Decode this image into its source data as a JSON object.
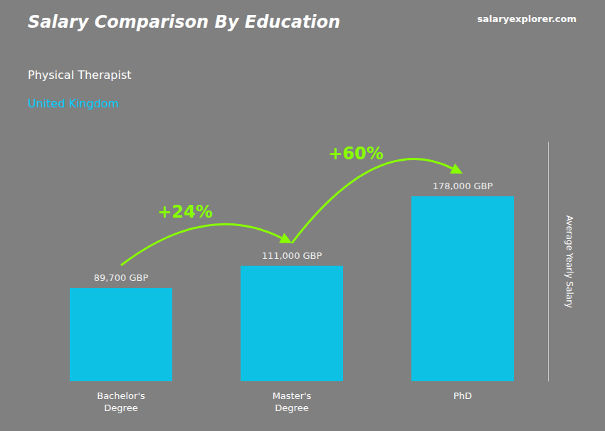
{
  "chart_data": {
    "type": "bar",
    "title": "Salary Comparison By Education",
    "subtitle": [
      "Physical Therapist",
      "United Kingdom"
    ],
    "ylabel": "Average Yearly Salary",
    "categories": [
      "Bachelor's\nDegree",
      "Master's\nDegree",
      "PhD"
    ],
    "values": [
      89700,
      111000,
      178000
    ],
    "value_labels": [
      "89,700 GBP",
      "111,000 GBP",
      "178,000 GBP"
    ],
    "data_labels": true,
    "color": "#00c8f0",
    "ylim": [
      0,
      230000
    ],
    "tick_labels": "x",
    "grid": false,
    "annotations": [
      {
        "text": "+24%",
        "from": "Bachelor's\nDegree",
        "to": "Master's\nDegree",
        "color": "#88ff00"
      },
      {
        "text": "+60%",
        "from": "Master's\nDegree",
        "to": "PhD",
        "color": "#88ff00"
      },
      {
        "text": "salaryexplorer.com"
      }
    ]
  }
}
